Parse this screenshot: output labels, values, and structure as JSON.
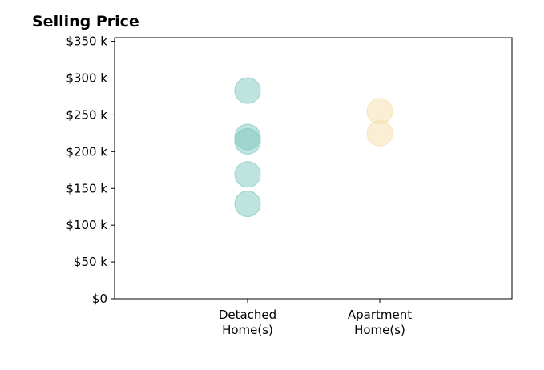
{
  "chart_data": {
    "type": "scatter",
    "title": "Selling Price",
    "xlabel": "",
    "ylabel": "",
    "categories": [
      "Detached\nHome(s)",
      "Apartment\nHome(s)"
    ],
    "ylim": [
      0,
      355000
    ],
    "yticks": [
      0,
      50000,
      100000,
      150000,
      200000,
      250000,
      300000,
      350000
    ],
    "ytick_labels": [
      "$0",
      "$50 k",
      "$100 k",
      "$150 k",
      "$200 k",
      "$250 k",
      "$300 k",
      "$350 k"
    ],
    "grid": false,
    "series": [
      {
        "category_index": 0,
        "color": "#80c7bd",
        "values": [
          283000,
          220000,
          214000,
          169000,
          129000
        ]
      },
      {
        "category_index": 1,
        "color": "#f5deaa",
        "values": [
          255000,
          225000
        ]
      }
    ]
  }
}
